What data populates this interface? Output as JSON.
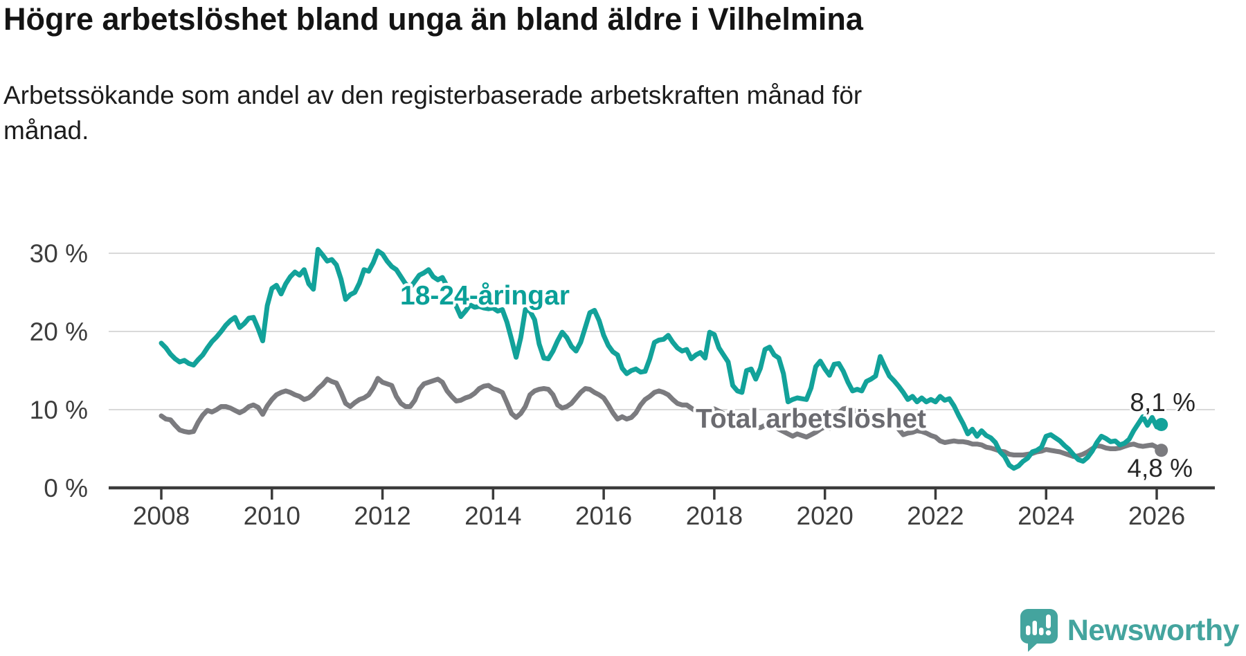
{
  "header": {
    "title": "Högre arbetslöshet bland unga än bland äldre i Vilhelmina",
    "subtitle": "Arbetssökande som andel av den registerbaserade arbetskraften månad för månad."
  },
  "chart_data": {
    "type": "line",
    "title": "Högre arbetslöshet bland unga än bland äldre i Vilhelmina",
    "subtitle": "Arbetssökande som andel av den registerbaserade arbetskraften månad för månad.",
    "unit": "%",
    "grid": "horizontal",
    "legend": "inline-labels",
    "x_start": "2008-01",
    "x_end": "2026-02",
    "months_per_point": 1,
    "x_tick_labels": [
      "2008",
      "2010",
      "2012",
      "2014",
      "2016",
      "2018",
      "2020",
      "2022",
      "2024",
      "2026"
    ],
    "y_tick_labels": [
      "30 %",
      "20 %",
      "10 %",
      "0 %"
    ],
    "y_tick_values": [
      30,
      20,
      10,
      0
    ],
    "ylim": [
      0,
      31.5
    ],
    "colors": {
      "youth": "#12a29a",
      "total": "#7b7b7f",
      "youth_label": "#0aa098",
      "total_label": "#6b6b70",
      "grid": "#d9d9d9",
      "axis": "#3b3b3b",
      "tick_text": "#3d3d3d",
      "end_label_text": "#282828"
    },
    "series": [
      {
        "id": "total",
        "name": "Total arbetslöshet",
        "end_label": "4,8 %",
        "end_value": 4.8,
        "values": [
          9.2,
          8.8,
          8.7,
          8.0,
          7.4,
          7.2,
          7.1,
          7.2,
          8.4,
          9.3,
          9.9,
          9.7,
          10.0,
          10.4,
          10.4,
          10.2,
          9.9,
          9.6,
          9.9,
          10.4,
          10.6,
          10.3,
          9.4,
          10.5,
          11.3,
          11.9,
          12.2,
          12.4,
          12.2,
          11.9,
          11.7,
          11.3,
          11.5,
          12.0,
          12.7,
          13.2,
          13.9,
          13.6,
          13.4,
          12.2,
          10.8,
          10.4,
          10.9,
          11.3,
          11.5,
          11.9,
          12.8,
          14.0,
          13.5,
          13.3,
          13.1,
          11.7,
          10.8,
          10.4,
          10.4,
          11.2,
          12.6,
          13.3,
          13.5,
          13.7,
          13.9,
          13.5,
          12.4,
          11.7,
          11.1,
          11.2,
          11.5,
          11.7,
          12.1,
          12.7,
          13.0,
          13.1,
          12.7,
          12.5,
          12.2,
          10.9,
          9.5,
          9.0,
          9.5,
          10.4,
          11.9,
          12.4,
          12.6,
          12.7,
          12.6,
          11.9,
          10.6,
          10.2,
          10.4,
          10.8,
          11.5,
          12.2,
          12.7,
          12.6,
          12.2,
          11.9,
          11.5,
          10.6,
          9.6,
          8.8,
          9.1,
          8.8,
          9.0,
          9.6,
          10.6,
          11.3,
          11.7,
          12.2,
          12.4,
          12.2,
          11.9,
          11.3,
          10.8,
          10.6,
          10.6,
          10.2,
          9.8,
          9.6,
          9.5,
          9.9,
          10.1,
          9.8,
          9.5,
          9.1,
          8.7,
          8.4,
          8.6,
          8.3,
          8.0,
          7.8,
          7.7,
          8.0,
          8.2,
          7.9,
          7.5,
          7.2,
          6.9,
          6.6,
          6.9,
          6.7,
          6.5,
          6.8,
          7.1,
          7.5,
          7.8,
          7.6,
          8.4,
          9.6,
          10.1,
          10.2,
          10.0,
          9.7,
          9.4,
          9.1,
          9.0,
          9.3,
          9.4,
          9.1,
          8.7,
          8.2,
          7.5,
          6.8,
          7.0,
          7.1,
          7.3,
          7.2,
          7.0,
          6.7,
          6.5,
          6.0,
          5.8,
          5.9,
          6.0,
          5.9,
          5.9,
          5.8,
          5.6,
          5.6,
          5.5,
          5.2,
          5.1,
          4.9,
          4.7,
          4.6,
          4.3,
          4.2,
          4.2,
          4.2,
          4.3,
          4.4,
          4.6,
          4.7,
          4.9,
          4.8,
          4.7,
          4.6,
          4.4,
          4.2,
          4.0,
          4.1,
          4.3,
          4.6,
          5.0,
          5.4,
          5.3,
          5.1,
          5.0,
          5.0,
          5.1,
          5.3,
          5.5,
          5.6,
          5.4,
          5.3,
          5.4,
          5.5,
          5.2,
          4.8
        ]
      },
      {
        "id": "youth",
        "name": "18-24-åringar",
        "end_label": "8,1 %",
        "end_value": 8.1,
        "values": [
          18.5,
          17.9,
          17.1,
          16.5,
          16.1,
          16.3,
          15.9,
          15.7,
          16.4,
          17.0,
          17.9,
          18.7,
          19.3,
          20.0,
          20.8,
          21.4,
          21.8,
          20.5,
          21.0,
          21.7,
          21.8,
          20.4,
          18.8,
          23.3,
          25.5,
          25.9,
          24.8,
          26.1,
          27.0,
          27.6,
          27.2,
          27.9,
          26.1,
          25.4,
          30.5,
          29.8,
          29.0,
          29.2,
          28.5,
          26.7,
          24.1,
          24.7,
          25.0,
          26.2,
          27.9,
          27.7,
          28.8,
          30.3,
          29.9,
          29.0,
          28.3,
          27.9,
          27.0,
          26.1,
          25.6,
          26.4,
          27.2,
          27.5,
          27.9,
          27.0,
          26.6,
          26.9,
          25.8,
          24.6,
          23.2,
          21.9,
          22.6,
          23.4,
          23.1,
          23.2,
          23.0,
          22.9,
          23.0,
          22.6,
          22.8,
          21.2,
          19.0,
          16.7,
          19.2,
          22.8,
          22.6,
          21.5,
          18.4,
          16.6,
          16.5,
          17.5,
          18.8,
          19.9,
          19.2,
          18.1,
          17.5,
          18.6,
          20.5,
          22.4,
          22.7,
          21.4,
          19.5,
          18.2,
          17.4,
          17.0,
          15.3,
          14.6,
          15.0,
          15.2,
          14.8,
          14.9,
          16.5,
          18.6,
          18.9,
          19.0,
          19.5,
          18.6,
          17.9,
          17.5,
          17.7,
          16.5,
          17.0,
          17.3,
          16.6,
          19.9,
          19.6,
          17.9,
          17.0,
          16.1,
          13.1,
          12.4,
          12.2,
          15.0,
          15.2,
          13.9,
          15.3,
          17.7,
          18.0,
          17.0,
          16.6,
          14.6,
          11.0,
          11.3,
          11.5,
          11.4,
          11.3,
          12.8,
          15.5,
          16.2,
          15.2,
          14.4,
          15.8,
          15.9,
          14.9,
          13.5,
          12.4,
          12.6,
          12.4,
          13.6,
          13.9,
          14.3,
          16.8,
          15.5,
          14.3,
          13.7,
          13.0,
          12.2,
          11.3,
          11.7,
          11.0,
          11.5,
          11.0,
          11.3,
          11.0,
          11.7,
          11.2,
          11.4,
          10.5,
          9.3,
          8.2,
          6.9,
          7.5,
          6.6,
          7.3,
          6.7,
          6.4,
          5.8,
          4.6,
          4.0,
          2.9,
          2.5,
          2.8,
          3.4,
          3.8,
          4.6,
          4.8,
          5.2,
          6.6,
          6.8,
          6.4,
          6.0,
          5.4,
          4.9,
          4.2,
          3.6,
          3.4,
          3.9,
          4.7,
          5.8,
          6.6,
          6.3,
          5.9,
          6.0,
          5.5,
          5.7,
          6.2,
          7.3,
          8.2,
          9.1,
          8.0,
          9.0,
          7.8,
          8.1
        ]
      }
    ]
  },
  "footer": {
    "brand": "Newsworthy",
    "brand_color": "#44a49e"
  }
}
